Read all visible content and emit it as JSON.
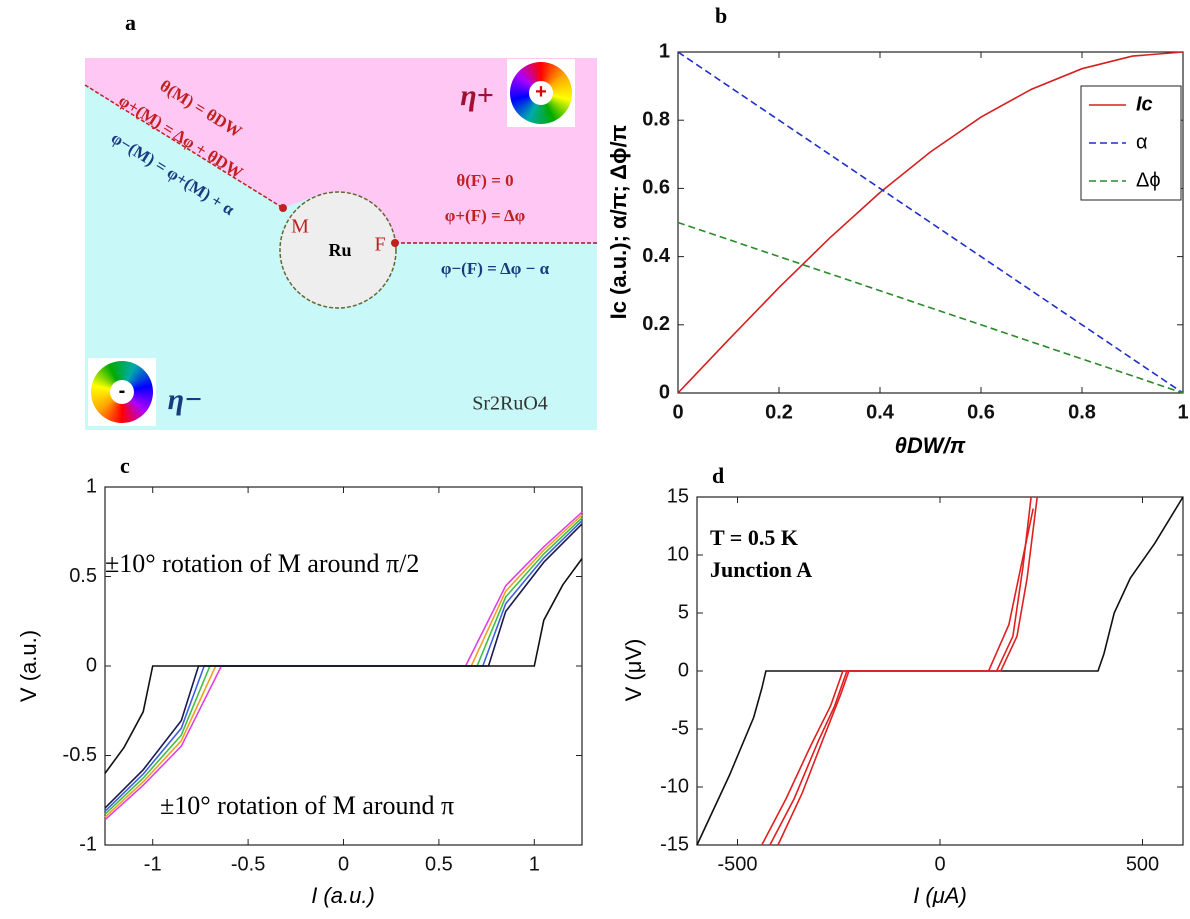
{
  "diagram": {
    "label": "a",
    "eta_plus": "η+",
    "eta_minus": "η−",
    "material": "Sr2RuO4",
    "center": "Ru",
    "point_m": "M",
    "point_f": "F",
    "wheel_plus": "+",
    "wheel_minus": "-",
    "theta_m": "θ(M) = θDW",
    "phi_plus_m": "φ+(M) = Δφ + θDW",
    "phi_minus_m": "φ−(M) = φ+(M) + α",
    "theta_f": "θ(F) = 0",
    "phi_plus_f": "φ+(F) = Δφ",
    "phi_minus_f": "φ−(F) = Δφ − α"
  },
  "chart_data": [
    {
      "type": "line",
      "label": "b",
      "xlabel": "θDW/π",
      "ylabel": "Ic (a.u.); α/π; Δϕ/π",
      "x": [
        0,
        0.1,
        0.2,
        0.3,
        0.4,
        0.5,
        0.6,
        0.7,
        0.8,
        0.9,
        1
      ],
      "series": [
        {
          "name": "Ic",
          "color": "#d42020",
          "linestyle": "solid",
          "values": [
            0,
            0.156,
            0.309,
            0.454,
            0.588,
            0.707,
            0.809,
            0.891,
            0.951,
            0.988,
            1
          ]
        },
        {
          "name": "α",
          "color": "#1f2fc8",
          "linestyle": "dashed",
          "values": [
            1,
            0.9,
            0.8,
            0.7,
            0.6,
            0.5,
            0.4,
            0.3,
            0.2,
            0.1,
            0
          ]
        },
        {
          "name": "Δϕ",
          "color": "#2a8a2a",
          "linestyle": "dashed",
          "values": [
            0.5,
            0.45,
            0.4,
            0.35,
            0.3,
            0.25,
            0.2,
            0.15,
            0.1,
            0.05,
            0
          ]
        }
      ],
      "xlim": [
        0,
        1
      ],
      "ylim": [
        0,
        1
      ],
      "xticks": [
        0,
        0.2,
        0.4,
        0.6,
        0.8,
        1
      ],
      "yticks": [
        0,
        0.2,
        0.4,
        0.6,
        0.8,
        1
      ],
      "legend": "upper right"
    },
    {
      "type": "line",
      "label": "c",
      "xlabel": "I (a.u.)",
      "ylabel": "V (a.u.)",
      "annotations": [
        "±10° rotation of M around π/2",
        "±10° rotation of M around π"
      ],
      "series": [
        {
          "color": "#e040e0",
          "x": [
            -1.25,
            -1.05,
            -0.85,
            -0.64,
            0.64,
            0.85,
            1.05,
            1.25
          ],
          "values": [
            -0.859,
            -0.666,
            -0.448,
            0,
            0,
            0.448,
            0.666,
            0.859
          ]
        },
        {
          "color": "#f0a020",
          "x": [
            -1.25,
            -1.05,
            -0.85,
            -0.67,
            0.67,
            0.85,
            1.05,
            1.25
          ],
          "values": [
            -0.844,
            -0.647,
            -0.418,
            0,
            0,
            0.418,
            0.647,
            0.844
          ]
        },
        {
          "color": "#40c040",
          "x": [
            -1.25,
            -1.05,
            -0.85,
            -0.7,
            0.7,
            0.85,
            1.05,
            1.25
          ],
          "values": [
            -0.828,
            -0.626,
            -0.386,
            0,
            0,
            0.386,
            0.626,
            0.828
          ]
        },
        {
          "color": "#4060e0",
          "x": [
            -1.25,
            -1.05,
            -0.85,
            -0.73,
            0.73,
            0.85,
            1.05,
            1.25
          ],
          "values": [
            -0.812,
            -0.604,
            -0.348,
            0,
            0,
            0.348,
            0.604,
            0.812
          ]
        },
        {
          "color": "#1a1a50",
          "x": [
            -1.25,
            -1.05,
            -0.85,
            -0.76,
            0.76,
            0.85,
            1.05,
            1.25
          ],
          "values": [
            -0.794,
            -0.58,
            -0.305,
            0,
            0,
            0.305,
            0.58,
            0.794
          ]
        },
        {
          "color": "#111111",
          "x": [
            -1.25,
            -1.15,
            -1.05,
            -1,
            1,
            1.05,
            1.15,
            1.25
          ],
          "values": [
            -0.6,
            -0.454,
            -0.256,
            0,
            0,
            0.256,
            0.454,
            0.6
          ]
        }
      ],
      "xlim": [
        -1.25,
        1.25
      ],
      "ylim": [
        -1,
        1
      ],
      "xticks": [
        -1,
        -0.5,
        0,
        0.5,
        1
      ],
      "yticks": [
        -1,
        -0.5,
        0,
        0.5,
        1
      ]
    },
    {
      "type": "line",
      "label": "d",
      "xlabel": "I (μA)",
      "ylabel": "V (μV)",
      "annotations": [
        "T = 0.5 K",
        "Junction A"
      ],
      "series": [
        {
          "color": "#111111",
          "x": [
            -600,
            -520,
            -460,
            -440,
            -430,
            390,
            405,
            430,
            470,
            530,
            600
          ],
          "values": [
            -15,
            -9,
            -4,
            -1.5,
            0,
            0,
            1.5,
            5,
            8,
            11,
            15
          ]
        },
        {
          "color": "#e02020",
          "x": [
            -420,
            -360,
            -300,
            -260,
            -240,
            -230,
            150,
            190,
            215,
            240
          ],
          "values": [
            -15,
            -11,
            -6,
            -3,
            -1,
            0,
            0,
            3,
            8,
            15
          ]
        },
        {
          "color": "#e02020",
          "x": [
            -440,
            -380,
            -320,
            -270,
            -250,
            -240,
            140,
            180,
            205,
            225
          ],
          "values": [
            -15,
            -11,
            -6.5,
            -3,
            -1,
            0,
            0,
            3,
            9,
            15
          ]
        },
        {
          "color": "#e02020",
          "x": [
            -400,
            -340,
            -290,
            -245,
            -225,
            120,
            170,
            200,
            230
          ],
          "values": [
            -15,
            -10.5,
            -6,
            -2,
            0,
            0,
            4,
            9,
            14
          ]
        }
      ],
      "xlim": [
        -600,
        600
      ],
      "ylim": [
        -15,
        15
      ],
      "xticks": [
        -500,
        0,
        500
      ],
      "yticks": [
        -15,
        -10,
        -5,
        0,
        5,
        10,
        15
      ]
    }
  ]
}
